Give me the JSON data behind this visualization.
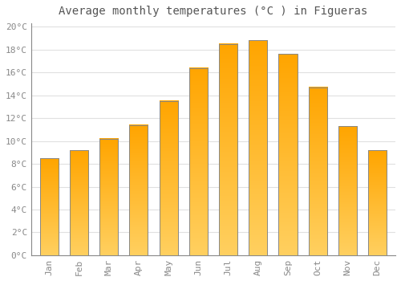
{
  "title": "Average monthly temperatures (°C ) in Figueras",
  "months": [
    "Jan",
    "Feb",
    "Mar",
    "Apr",
    "May",
    "Jun",
    "Jul",
    "Aug",
    "Sep",
    "Oct",
    "Nov",
    "Dec"
  ],
  "values": [
    8.5,
    9.2,
    10.2,
    11.4,
    13.5,
    16.4,
    18.5,
    18.8,
    17.6,
    14.7,
    11.3,
    9.2
  ],
  "bar_color_top": "#FFA500",
  "bar_color_bottom": "#FFD060",
  "bar_edge_color": "#888888",
  "background_color": "#FFFFFF",
  "grid_color": "#E0E0E0",
  "tick_label_color": "#888888",
  "title_color": "#555555",
  "ylim": [
    0,
    20
  ],
  "ytick_step": 2,
  "title_fontsize": 10,
  "tick_fontsize": 8,
  "font_family": "monospace"
}
